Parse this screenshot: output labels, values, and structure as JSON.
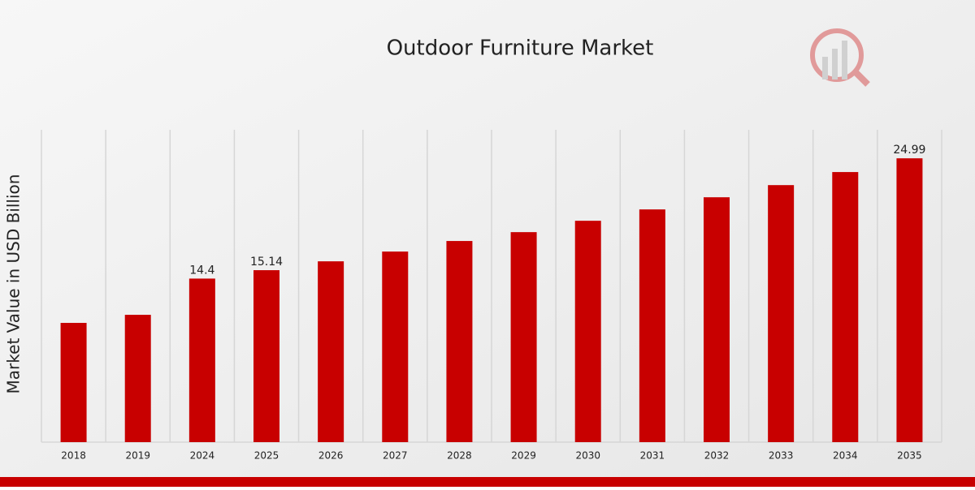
{
  "chart_data": {
    "type": "bar",
    "title": "Outdoor Furniture Market",
    "y_label": "Market Value in USD Billion",
    "categories": [
      "2018",
      "2019",
      "2024",
      "2025",
      "2026",
      "2027",
      "2028",
      "2029",
      "2030",
      "2031",
      "2032",
      "2033",
      "2034",
      "2035"
    ],
    "values": [
      10.5,
      11.21,
      14.4,
      15.14,
      15.92,
      16.78,
      17.71,
      18.49,
      19.49,
      20.49,
      21.56,
      22.63,
      23.78,
      24.99
    ],
    "value_labels": [
      null,
      null,
      "14.4",
      "15.14",
      null,
      null,
      null,
      null,
      null,
      null,
      null,
      null,
      null,
      "24.99"
    ],
    "color": "#c80000",
    "ylim": [
      0,
      27.5
    ],
    "grid": true
  }
}
